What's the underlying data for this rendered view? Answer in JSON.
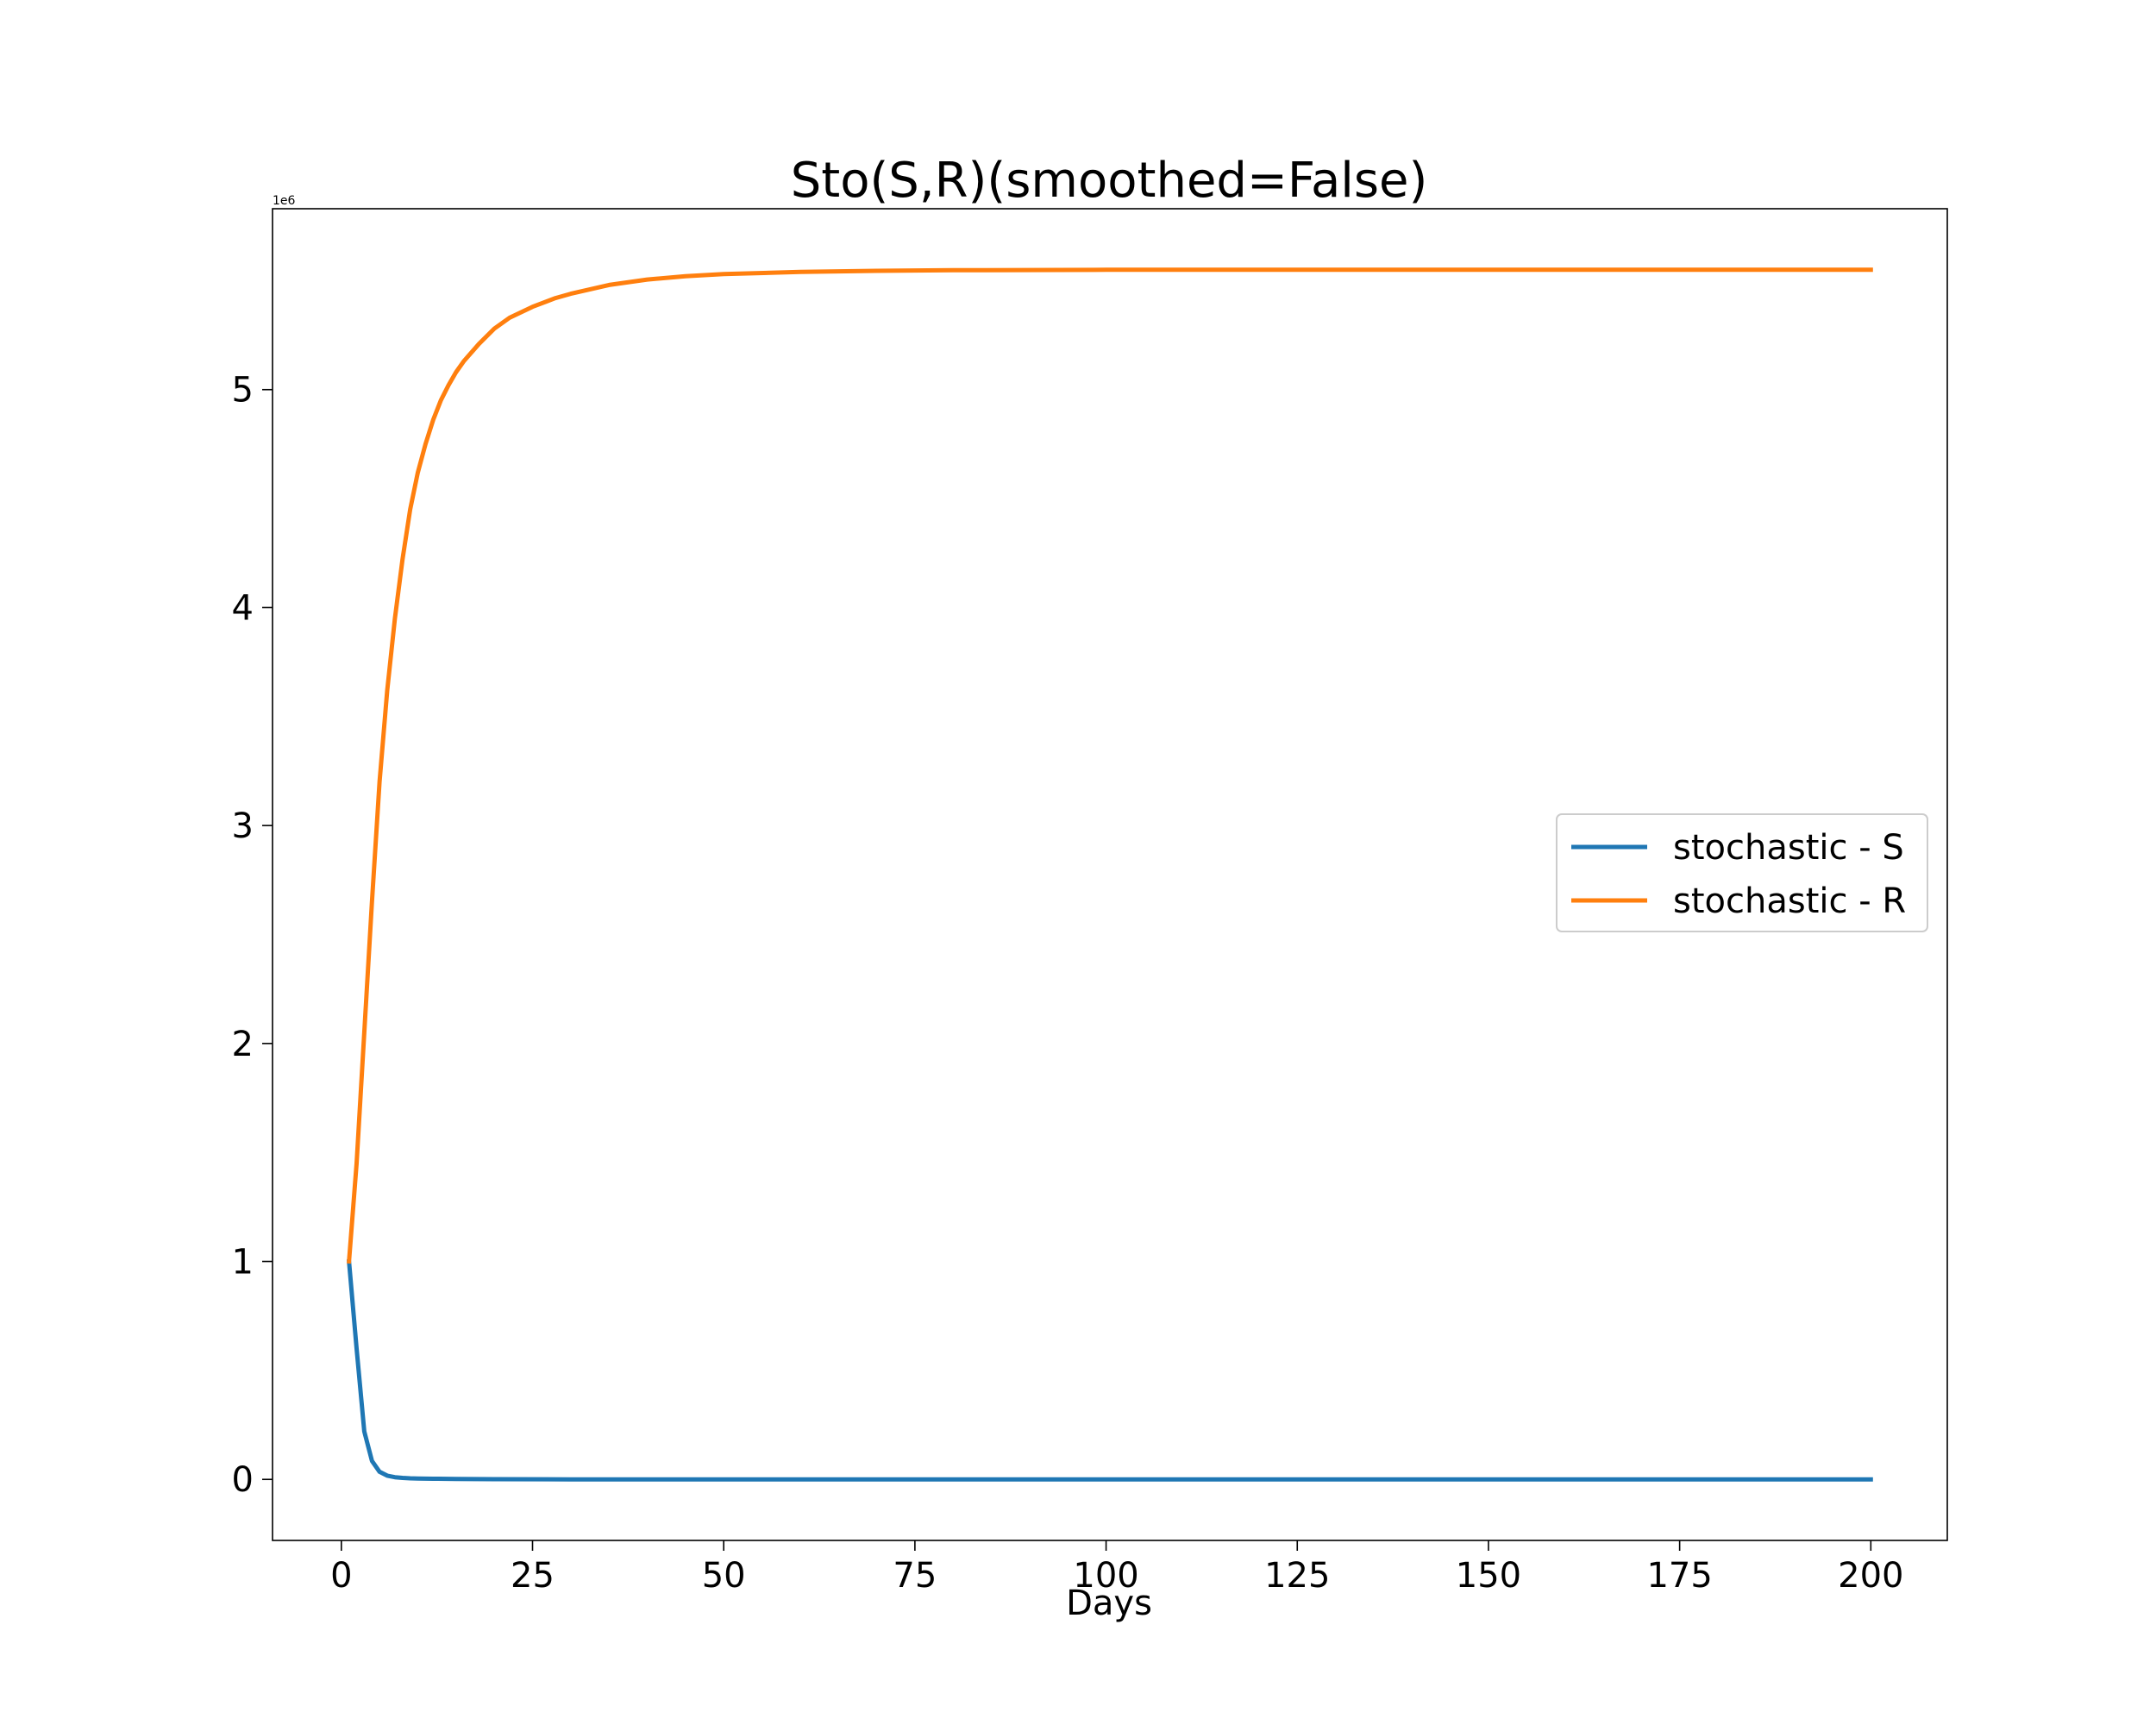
{
  "chart_data": {
    "type": "line",
    "title": "Sto(S,R)(smoothed=False)",
    "xlabel": "Days",
    "ylabel": "",
    "y_offset_label": "1e6",
    "xlim": [
      -9,
      210
    ],
    "ylim": [
      -0.28,
      5.83
    ],
    "x_ticks": [
      0,
      25,
      50,
      75,
      100,
      125,
      150,
      175,
      200
    ],
    "x_tick_labels": [
      "0",
      "25",
      "50",
      "75",
      "100",
      "125",
      "150",
      "175",
      "200"
    ],
    "y_ticks": [
      0,
      1,
      2,
      3,
      4,
      5
    ],
    "y_tick_labels": [
      "0",
      "1",
      "2",
      "3",
      "4",
      "5"
    ],
    "grid": false,
    "legend_position": "center-right",
    "series": [
      {
        "name": "stochastic - S",
        "color": "#1f77b4",
        "x": [
          1,
          2,
          3,
          4,
          5,
          6,
          7,
          8,
          9,
          10,
          12,
          15,
          20,
          30,
          50,
          100,
          150,
          200
        ],
        "y": [
          1.0,
          0.6,
          0.22,
          0.085,
          0.035,
          0.017,
          0.01,
          0.007,
          0.005,
          0.004,
          0.003,
          0.002,
          0.001,
          0.0,
          0.0,
          0.0,
          0.0,
          0.0
        ]
      },
      {
        "name": "stochastic - R",
        "color": "#ff7f0e",
        "x": [
          1,
          2,
          3,
          4,
          5,
          6,
          7,
          8,
          9,
          10,
          11,
          12,
          13,
          14,
          15,
          16,
          18,
          20,
          22,
          25,
          28,
          30,
          35,
          40,
          45,
          50,
          60,
          70,
          80,
          100,
          125,
          150,
          175,
          200
        ],
        "y": [
          1.0,
          1.45,
          2.05,
          2.65,
          3.2,
          3.62,
          3.95,
          4.22,
          4.45,
          4.62,
          4.75,
          4.86,
          4.95,
          5.02,
          5.08,
          5.13,
          5.21,
          5.28,
          5.33,
          5.38,
          5.42,
          5.44,
          5.48,
          5.505,
          5.52,
          5.53,
          5.54,
          5.545,
          5.548,
          5.55,
          5.55,
          5.55,
          5.55,
          5.55
        ]
      }
    ]
  }
}
